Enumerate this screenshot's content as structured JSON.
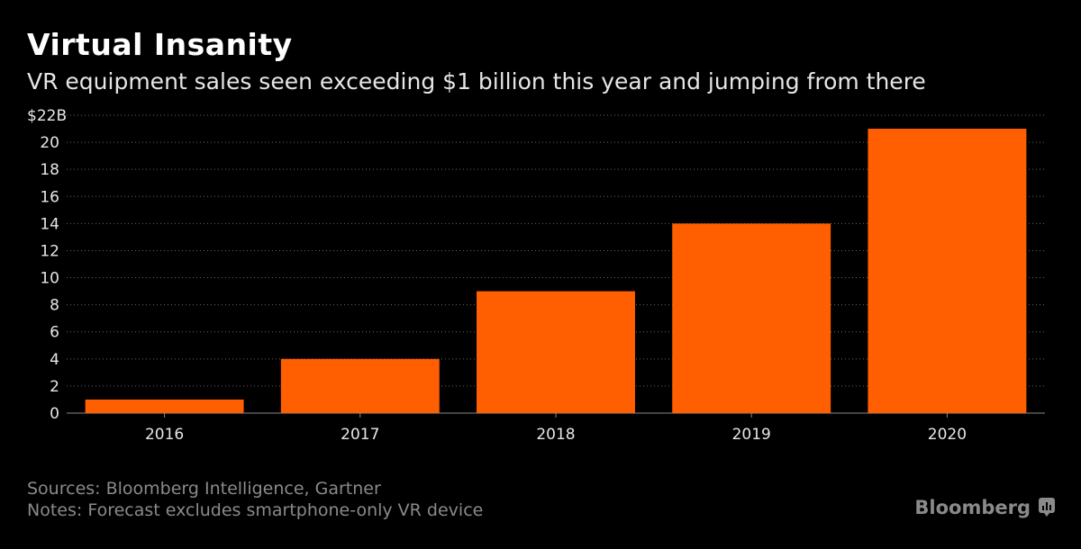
{
  "header": {
    "title": "Virtual Insanity",
    "subtitle": "VR equipment sales seen exceeding $1 billion this year and jumping from there"
  },
  "footer": {
    "sources": "Sources: Bloomberg Intelligence, Gartner",
    "notes": "Notes: Forecast excludes smartphone-only VR device",
    "brand": "Bloomberg"
  },
  "colors": {
    "bar": "#ff5f00",
    "background": "#000000",
    "grid": "#666666",
    "text": "#e6e6e6"
  },
  "chart_data": {
    "type": "bar",
    "title": "Virtual Insanity",
    "subtitle": "VR equipment sales seen exceeding $1 billion this year and jumping from there",
    "xlabel": "",
    "ylabel": "",
    "categories": [
      "2016",
      "2017",
      "2018",
      "2019",
      "2020"
    ],
    "values": [
      1,
      4,
      9,
      14,
      21
    ],
    "ylim": [
      0,
      22
    ],
    "yticks": [
      0,
      2,
      4,
      6,
      8,
      10,
      12,
      14,
      16,
      18,
      20,
      22
    ],
    "ytick_labels": [
      "0",
      "2",
      "4",
      "6",
      "8",
      "10",
      "12",
      "14",
      "16",
      "18",
      "20",
      "$22B"
    ],
    "grid": true,
    "legend": "none"
  }
}
